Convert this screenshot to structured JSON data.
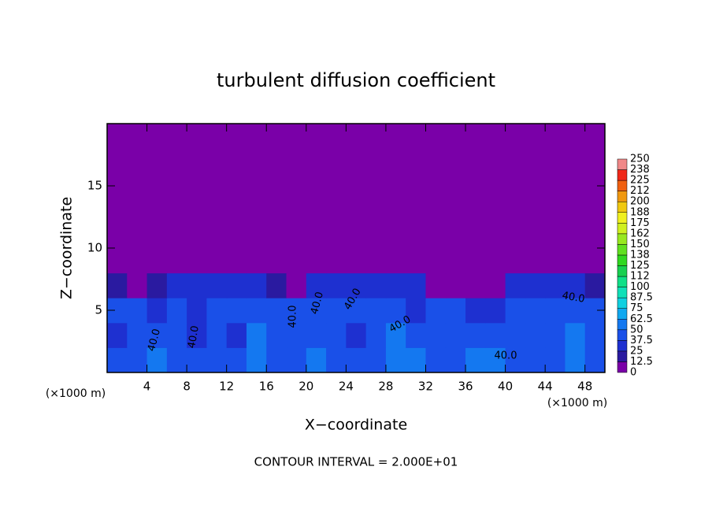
{
  "chart_data": {
    "type": "heatmap",
    "title": "turbulent diffusion coefficient",
    "xlabel": "X−coordinate",
    "ylabel": "Z−coordinate",
    "xunit": "(×1000 m)",
    "footnote": "CONTOUR INTERVAL = 2.000E+01",
    "annotations": [
      "40.0",
      "40.0",
      "40.0",
      "40.0",
      "40.0",
      "40.0",
      "40.0",
      "40.0"
    ],
    "xlim": [
      0,
      50
    ],
    "ylim": [
      0,
      20
    ],
    "xticks": [
      4,
      8,
      12,
      16,
      20,
      24,
      28,
      32,
      36,
      40,
      44,
      48
    ],
    "yticks": [
      5,
      10,
      15
    ],
    "xbins": [
      0,
      2,
      4,
      6,
      8,
      10,
      12,
      14,
      16,
      18,
      20,
      22,
      24,
      26,
      28,
      30,
      32,
      34,
      36,
      38,
      40,
      42,
      44,
      46,
      48,
      50
    ],
    "ybins": [
      0,
      2,
      4,
      6,
      8,
      10
    ],
    "z": [
      [
        40,
        45,
        50,
        42,
        45,
        40,
        38,
        55,
        48,
        45,
        50,
        40,
        42,
        48,
        55,
        50,
        40,
        45,
        52,
        58,
        45,
        40,
        48,
        60,
        45
      ],
      [
        35,
        38,
        45,
        40,
        36,
        40,
        35,
        50,
        45,
        42,
        40,
        38,
        36,
        45,
        50,
        42,
        40,
        45,
        48,
        40,
        38,
        42,
        45,
        50,
        40
      ],
      [
        38,
        40,
        35,
        38,
        36,
        40,
        38,
        45,
        40,
        38,
        42,
        40,
        38,
        45,
        40,
        35,
        42,
        38,
        36,
        30,
        40,
        42,
        45,
        48,
        38
      ],
      [
        20,
        10,
        15,
        35,
        35,
        35,
        35,
        30,
        15,
        10,
        30,
        35,
        35,
        35,
        30,
        25,
        10,
        0,
        0,
        5,
        25,
        35,
        35,
        30,
        20
      ],
      [
        0,
        0,
        0,
        0,
        5,
        5,
        0,
        0,
        0,
        0,
        0,
        0,
        0,
        0,
        0,
        0,
        0,
        0,
        0,
        0,
        0,
        0,
        5,
        0,
        0
      ]
    ],
    "background": 0,
    "colorbar": {
      "ticks": [
        0,
        12.5,
        25,
        37.5,
        50,
        62.5,
        75,
        87.5,
        100,
        {
          "value": 112.5,
          "label": "112"
        },
        125,
        {
          "value": 137.5,
          "label": "138"
        },
        150,
        {
          "value": 162.5,
          "label": "162"
        },
        175,
        {
          "value": 187.5,
          "label": "188"
        },
        200,
        {
          "value": 212.5,
          "label": "212"
        },
        225,
        {
          "value": 237.5,
          "label": "238"
        },
        250
      ],
      "colors": [
        "#7a00a8",
        "#2a1aa0",
        "#1e30d0",
        "#1a50e8",
        "#1478f0",
        "#10a8f0",
        "#10d0e0",
        "#10e0b8",
        "#10e088",
        "#18d050",
        "#30d820",
        "#60e020",
        "#98e820",
        "#d0f020",
        "#f0f020",
        "#f0c810",
        "#f09810",
        "#f06010",
        "#f02818",
        "#f08888"
      ]
    }
  }
}
